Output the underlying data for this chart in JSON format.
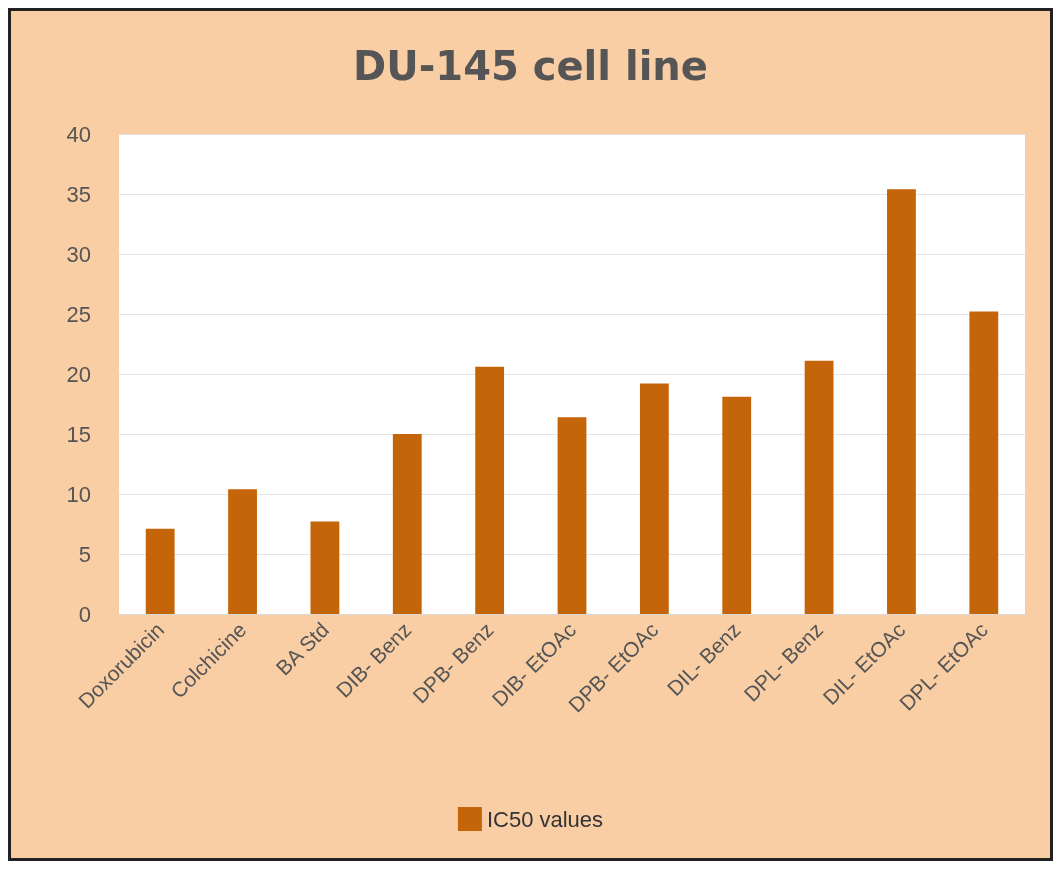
{
  "chart_data": {
    "type": "bar",
    "title": "DU-145 cell line",
    "categories": [
      "Doxorubicin",
      "Colchicine",
      "BA Std",
      "DIB- Benz",
      "DPB- Benz",
      "DIB- EtOAc",
      "DPB- EtOAc",
      "DIL- Benz",
      "DPL- Benz",
      "DIL- EtOAc",
      "DPL- EtOAc"
    ],
    "series": [
      {
        "name": "IC50 values",
        "color": "#c5650a",
        "values": [
          7.1,
          10.4,
          7.7,
          15.0,
          20.6,
          16.4,
          19.2,
          18.1,
          21.1,
          35.4,
          25.2
        ]
      }
    ],
    "ylim": [
      0,
      40
    ],
    "yticks": [
      0,
      5,
      10,
      15,
      20,
      25,
      30,
      35,
      40
    ],
    "grid": "y",
    "legend": "bottom"
  }
}
